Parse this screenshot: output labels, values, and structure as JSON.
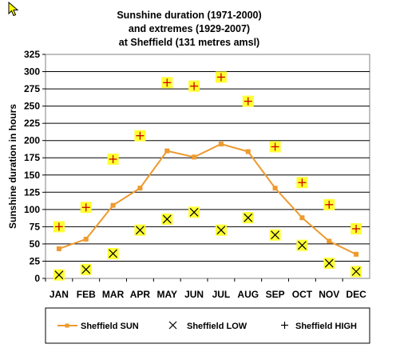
{
  "colors": {
    "sun": "#ee9a2e",
    "marker_fill": "#ffff33",
    "marker_glyph": "#000000",
    "high_glyph": "#cc0000",
    "grid": "#000000"
  },
  "chart_data": {
    "type": "line",
    "title": [
      "Sunshine duration (1971-2000)",
      "and extremes (1929-2007)",
      "at Sheffield (131 metres amsl)"
    ],
    "xlabel": "",
    "ylabel": "Sunshine duration in hours",
    "ylim": [
      0,
      325
    ],
    "yticks": [
      0,
      25,
      50,
      75,
      100,
      125,
      150,
      175,
      200,
      225,
      250,
      275,
      300,
      325
    ],
    "grid": true,
    "legend_position": "bottom",
    "categories": [
      "JAN",
      "FEB",
      "MAR",
      "APR",
      "MAY",
      "JUN",
      "JUL",
      "AUG",
      "SEP",
      "OCT",
      "NOV",
      "DEC"
    ],
    "series": [
      {
        "name": "Sheffield SUN",
        "style": "line",
        "values": [
          43,
          57,
          106,
          131,
          185,
          176,
          195,
          184,
          131,
          88,
          54,
          35
        ]
      },
      {
        "name": "Sheffield LOW",
        "style": "x-marker",
        "values": [
          5,
          13,
          36,
          70,
          86,
          96,
          70,
          88,
          63,
          48,
          22,
          10
        ]
      },
      {
        "name": "Sheffield HIGH",
        "style": "plus-marker",
        "values": [
          75,
          103,
          173,
          207,
          284,
          279,
          292,
          257,
          191,
          139,
          107,
          72
        ]
      }
    ]
  }
}
